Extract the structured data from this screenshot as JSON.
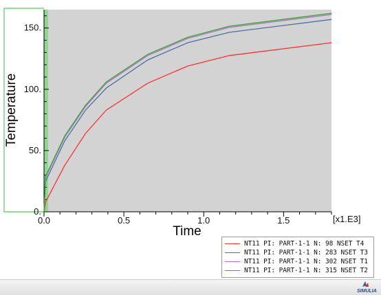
{
  "chart_data": {
    "type": "line",
    "title": "",
    "xlabel": "Time",
    "ylabel": "Temperature",
    "x_unit_label": "[x1.E3]",
    "xlim": [
      0,
      1.8
    ],
    "ylim": [
      0,
      165
    ],
    "x_ticks": [
      0.0,
      0.5,
      1.0,
      1.5
    ],
    "x_tick_labels": [
      "0.0",
      "0.5",
      "1.0",
      "1.5"
    ],
    "y_ticks": [
      0,
      50,
      100,
      150
    ],
    "y_tick_labels": [
      "0.",
      "50.",
      "100.",
      "150."
    ],
    "grid": false,
    "legend_position": "bottom-right",
    "plot_background": "#d3d3d3",
    "series": [
      {
        "name": "NT11 PI: PART-1-1 N: 98 NSET T4",
        "color": "#ff3030",
        "x": [
          0,
          0.01,
          0.13,
          0.26,
          0.39,
          0.65,
          0.9,
          1.16,
          1.8
        ],
        "y": [
          0,
          8,
          38,
          64,
          83,
          105,
          119,
          127.5,
          138
        ]
      },
      {
        "name": "NT11 PI: PART-1-1 N: 283 NSET T3",
        "color": "#4a6fa5",
        "x": [
          0,
          0.01,
          0.13,
          0.26,
          0.39,
          0.65,
          0.9,
          1.16,
          1.8
        ],
        "y": [
          0,
          25,
          58,
          83,
          101,
          124,
          138,
          146.5,
          157
        ]
      },
      {
        "name": "NT11 PI: PART-1-1 N: 302 NSET T1",
        "color": "#b070c0",
        "x": [
          0,
          0.01,
          0.13,
          0.26,
          0.39,
          0.65,
          0.9,
          1.16,
          1.8
        ],
        "y": [
          0,
          28,
          61,
          86,
          105,
          127.5,
          141.5,
          150.5,
          161
        ]
      },
      {
        "name": "NT11 PI: PART-1-1 N: 315 NSET T2",
        "color": "#33aa33",
        "x": [
          0,
          0.01,
          0.13,
          0.26,
          0.39,
          0.65,
          0.9,
          1.16,
          1.8
        ],
        "y": [
          0,
          29,
          62,
          87,
          106,
          128.5,
          142.5,
          151.5,
          162
        ]
      }
    ]
  },
  "highlight_band_color": "#7fd97f",
  "brand": {
    "logo_icon": "ds-simulia-logo-icon",
    "text": "SIMULIA"
  }
}
